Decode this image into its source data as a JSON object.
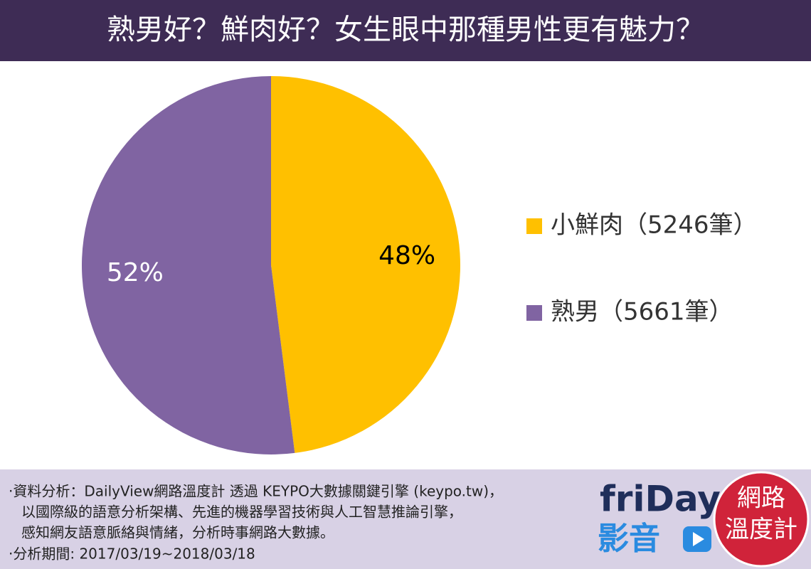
{
  "header": {
    "title": "熟男好？鮮肉好？女生眼中那種男性更有魅力？"
  },
  "chart_data": {
    "type": "pie",
    "categories": [
      "小鮮肉（5246筆）",
      "熟男（5661筆）"
    ],
    "values": [
      48,
      52
    ],
    "value_labels": [
      "48%",
      "52%"
    ],
    "colors": [
      "#ffc000",
      "#8064a2"
    ],
    "label_colors": [
      "#000000",
      "#ffffff"
    ],
    "legend": "right"
  },
  "footer": {
    "lines": [
      "‧資料分析：DailyView網路溫度計 透過 KEYPO大數據關鍵引擎 (keypo.tw)，",
      "以國際級的語意分析架構、先進的機器學習技術與人工智慧推論引擎，",
      "感知網友語意脈絡與情緒，分析時事網路大數據。",
      "‧分析期間: 2017/03/19~2018/03/18"
    ],
    "logos": {
      "brand": "friDay",
      "brand_sub": "影音",
      "badge": [
        "網路",
        "溫度計"
      ]
    }
  }
}
